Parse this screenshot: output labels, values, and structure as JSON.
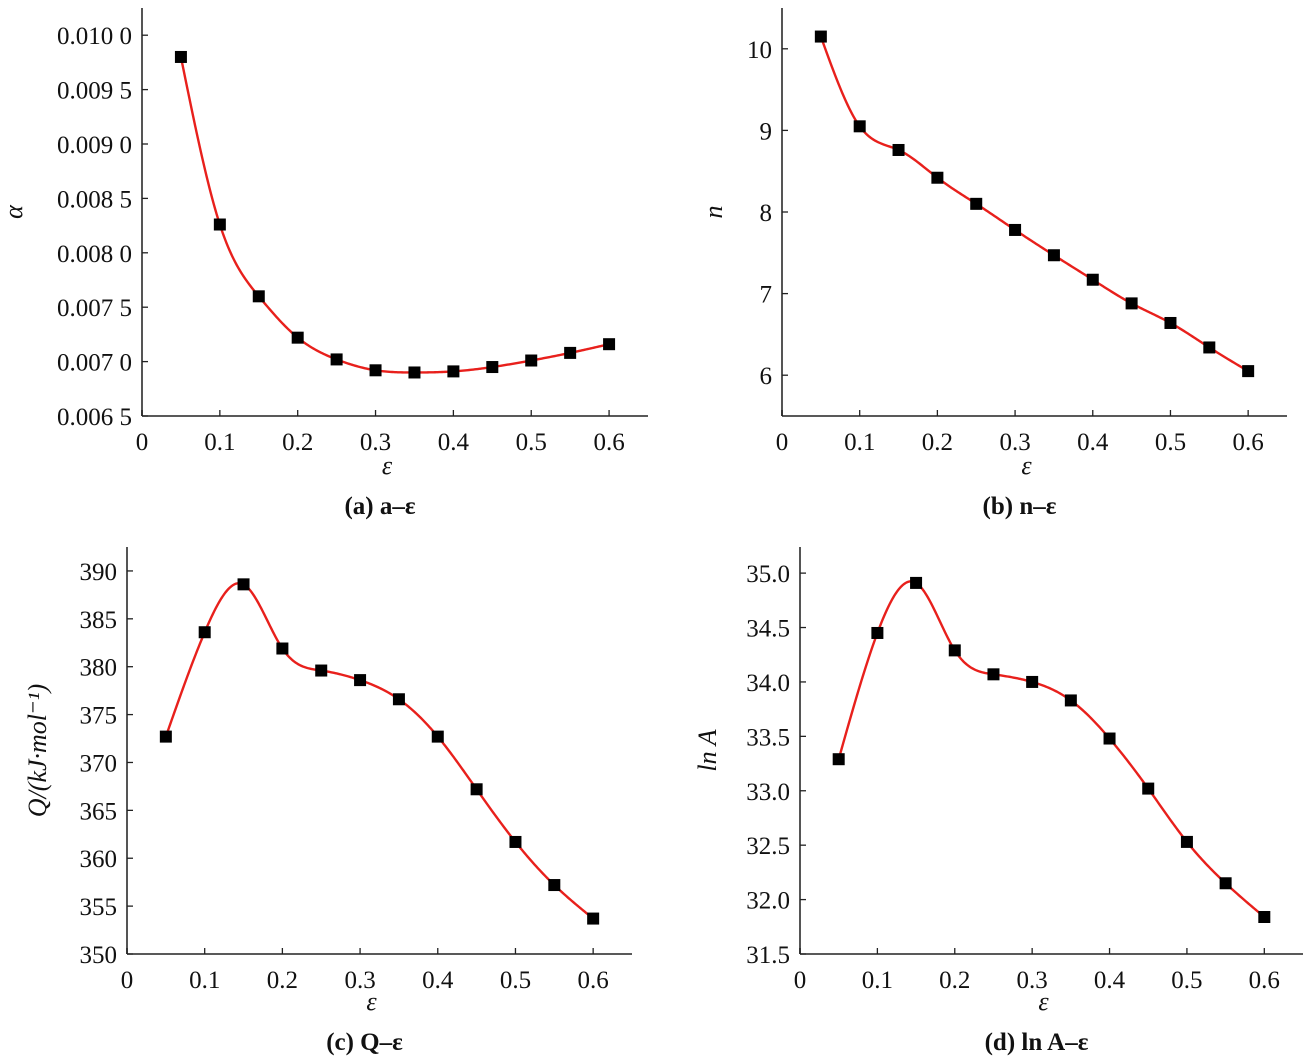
{
  "chart_data": [
    {
      "type": "line",
      "panel": "a",
      "caption": "(a) a–ε",
      "xlabel": "ε",
      "ylabel": "α",
      "xlim": [
        0,
        0.65
      ],
      "ylim": [
        0.0065,
        0.01025
      ],
      "xticks": [
        0,
        0.1,
        0.2,
        0.3,
        0.4,
        0.5,
        0.6
      ],
      "xtick_labels": [
        "0",
        "0.1",
        "0.2",
        "0.3",
        "0.4",
        "0.5",
        "0.6"
      ],
      "yticks": [
        0.0065,
        0.007,
        0.0075,
        0.008,
        0.0085,
        0.009,
        0.0095,
        0.01
      ],
      "ytick_labels": [
        "0.006 5",
        "0.007 0",
        "0.007 5",
        "0.008 0",
        "0.008 5",
        "0.009 0",
        "0.009 5",
        "0.010 0"
      ],
      "grid": false,
      "series": [
        {
          "name": "data",
          "marker": "square",
          "color": "#000000",
          "x": [
            0.05,
            0.1,
            0.15,
            0.2,
            0.25,
            0.3,
            0.35,
            0.4,
            0.45,
            0.5,
            0.55,
            0.6
          ],
          "y": [
            0.0098,
            0.00826,
            0.0076,
            0.00722,
            0.00702,
            0.00692,
            0.0069,
            0.00691,
            0.00695,
            0.00701,
            0.00708,
            0.00716
          ]
        },
        {
          "name": "fit",
          "style": "line",
          "color": "#e8201c"
        }
      ]
    },
    {
      "type": "line",
      "panel": "b",
      "caption": "(b) n–ε",
      "xlabel": "ε",
      "ylabel": "n",
      "xlim": [
        0,
        0.65
      ],
      "ylim": [
        5.5,
        10.5
      ],
      "xticks": [
        0,
        0.1,
        0.2,
        0.3,
        0.4,
        0.5,
        0.6
      ],
      "xtick_labels": [
        "0",
        "0.1",
        "0.2",
        "0.3",
        "0.4",
        "0.5",
        "0.6"
      ],
      "yticks": [
        6,
        7,
        8,
        9,
        10
      ],
      "ytick_labels": [
        "6",
        "7",
        "8",
        "9",
        "10"
      ],
      "grid": false,
      "series": [
        {
          "name": "data",
          "marker": "square",
          "color": "#000000",
          "x": [
            0.05,
            0.1,
            0.15,
            0.2,
            0.25,
            0.3,
            0.35,
            0.4,
            0.45,
            0.5,
            0.55,
            0.6
          ],
          "y": [
            10.15,
            9.05,
            8.76,
            8.42,
            8.1,
            7.78,
            7.47,
            7.17,
            6.88,
            6.64,
            6.34,
            6.05
          ]
        },
        {
          "name": "fit",
          "style": "line",
          "color": "#e8201c"
        }
      ]
    },
    {
      "type": "line",
      "panel": "c",
      "caption": "(c) Q–ε",
      "xlabel": "ε",
      "ylabel": "Q/(kJ·mol⁻¹)",
      "xlim": [
        0,
        0.65
      ],
      "ylim": [
        350,
        392.5
      ],
      "xticks": [
        0,
        0.1,
        0.2,
        0.3,
        0.4,
        0.5,
        0.6
      ],
      "xtick_labels": [
        "0",
        "0.1",
        "0.2",
        "0.3",
        "0.4",
        "0.5",
        "0.6"
      ],
      "yticks": [
        350,
        355,
        360,
        365,
        370,
        375,
        380,
        385,
        390
      ],
      "ytick_labels": [
        "350",
        "355",
        "360",
        "365",
        "370",
        "375",
        "380",
        "385",
        "390"
      ],
      "grid": false,
      "series": [
        {
          "name": "data",
          "marker": "square",
          "color": "#000000",
          "x": [
            0.05,
            0.1,
            0.15,
            0.2,
            0.25,
            0.3,
            0.35,
            0.4,
            0.45,
            0.5,
            0.55,
            0.6
          ],
          "y": [
            372.7,
            383.6,
            388.6,
            381.9,
            379.6,
            378.6,
            376.6,
            372.7,
            367.2,
            361.7,
            357.2,
            353.7
          ]
        },
        {
          "name": "fit",
          "style": "line",
          "color": "#e8201c"
        }
      ]
    },
    {
      "type": "line",
      "panel": "d",
      "caption": "(d) ln A–ε",
      "xlabel": "ε",
      "ylabel": "ln A",
      "xlim": [
        0,
        0.65
      ],
      "ylim": [
        31.5,
        35.24
      ],
      "xticks": [
        0,
        0.1,
        0.2,
        0.3,
        0.4,
        0.5,
        0.6
      ],
      "xtick_labels": [
        "0",
        "0.1",
        "0.2",
        "0.3",
        "0.4",
        "0.5",
        "0.6"
      ],
      "yticks": [
        31.5,
        32.0,
        32.5,
        33.0,
        33.5,
        34.0,
        34.5,
        35.0
      ],
      "ytick_labels": [
        "31.5",
        "32.0",
        "32.5",
        "33.0",
        "33.5",
        "34.0",
        "34.5",
        "35.0"
      ],
      "grid": false,
      "series": [
        {
          "name": "data",
          "marker": "square",
          "color": "#000000",
          "x": [
            0.05,
            0.1,
            0.15,
            0.2,
            0.25,
            0.3,
            0.35,
            0.4,
            0.45,
            0.5,
            0.55,
            0.6
          ],
          "y": [
            33.29,
            34.45,
            34.91,
            34.29,
            34.07,
            34.0,
            33.83,
            33.48,
            33.02,
            32.53,
            32.15,
            31.84
          ]
        },
        {
          "name": "fit",
          "style": "line",
          "color": "#e8201c"
        }
      ]
    }
  ]
}
